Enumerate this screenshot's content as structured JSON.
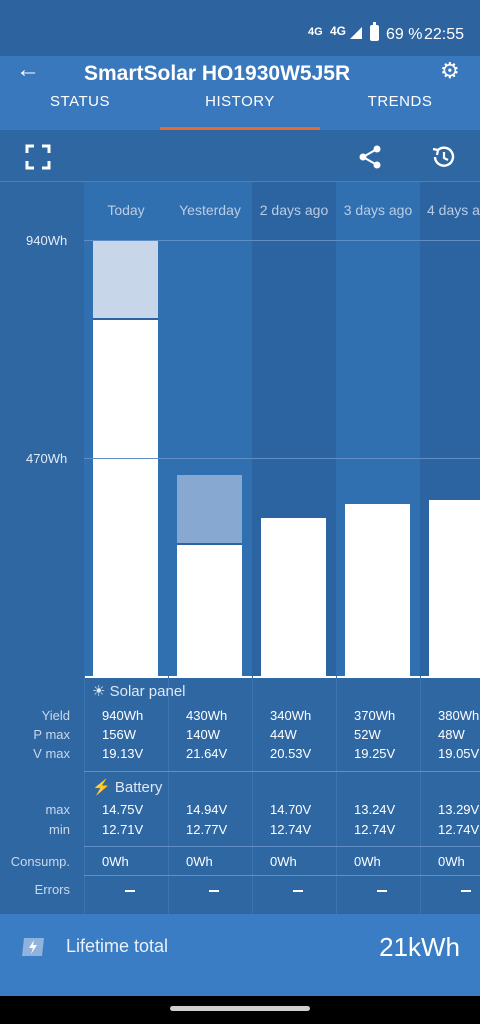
{
  "status_bar": {
    "signal": "4G",
    "network": "4G",
    "battery": "69 %",
    "time": "22:55"
  },
  "header": {
    "title": "SmartSolar HQ1930W5J5R"
  },
  "tabs": [
    {
      "label": "STATUS"
    },
    {
      "label": "HISTORY"
    },
    {
      "label": "TRENDS"
    }
  ],
  "toolbar": {
    "icons": [
      "fullscreen-icon",
      "share-icon",
      "history-icon"
    ]
  },
  "chart_data": {
    "type": "bar",
    "categories": [
      "Today",
      "Yesterday",
      "2 days ago",
      "3 days ago",
      "4 days a"
    ],
    "ylabel": "",
    "yticks": [
      "940Wh",
      "470Wh"
    ],
    "ylim": [
      0,
      940
    ],
    "series": [
      {
        "values": [
          940,
          430,
          340,
          370,
          380
        ]
      }
    ],
    "colors": {
      "bar": "#ffffff",
      "overlay_light": "#c7d6e8",
      "overlay_mid": "#86a8d1"
    }
  },
  "solar_panel": {
    "title": "Solar panel",
    "labels": {
      "yield": "Yield",
      "pmax": "P max",
      "vmax": "V max"
    },
    "yield": [
      "940Wh",
      "430Wh",
      "340Wh",
      "370Wh",
      "380Wh"
    ],
    "pmax": [
      "156W",
      "140W",
      "44W",
      "52W",
      "48W"
    ],
    "vmax": [
      "19.13V",
      "21.64V",
      "20.53V",
      "19.25V",
      "19.05V"
    ]
  },
  "battery": {
    "title": "Battery",
    "labels": {
      "max": "max",
      "min": "min"
    },
    "max": [
      "14.75V",
      "14.94V",
      "14.70V",
      "13.24V",
      "13.29V"
    ],
    "min": [
      "12.71V",
      "12.77V",
      "12.74V",
      "12.74V",
      "12.74V"
    ]
  },
  "consumption": {
    "label": "Consump.",
    "values": [
      "0Wh",
      "0Wh",
      "0Wh",
      "0Wh",
      "0Wh"
    ]
  },
  "errors": {
    "label": "Errors"
  },
  "footer": {
    "label": "Lifetime total",
    "value": "21kWh"
  }
}
